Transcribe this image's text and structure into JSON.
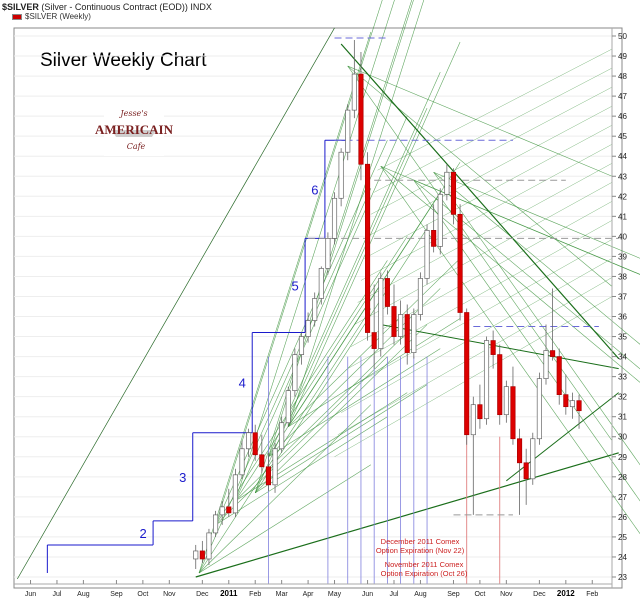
{
  "header": {
    "symbol": "$SILVER",
    "description": "(Silver - Continuous Contract (EOD)) INDX",
    "overlay_name": "$SILVER (Weekly)"
  },
  "logo": {
    "top_text": "Jesse's",
    "main_text": "AMERICAIN",
    "bottom_text": "Cafe"
  },
  "colors": {
    "up_candle": "#ffffff",
    "down_candle": "#dd0000",
    "step_lines": "#1a1acc",
    "fan_lines": "#2e8b2e",
    "trend_lines": "#1a6e1a",
    "annotation": "#cc2222",
    "vertical_markers": "#8080dd"
  },
  "chart_data": {
    "type": "candlestick",
    "title": "Silver Weekly Chart",
    "ylim": [
      22.6,
      50.6
    ],
    "y_ticks": [
      23,
      24,
      25,
      26,
      27,
      28,
      29,
      30,
      31,
      32,
      33,
      34,
      35,
      36,
      37,
      38,
      39,
      40,
      41,
      42,
      43,
      44,
      45,
      46,
      47,
      48,
      49,
      50
    ],
    "x_months": [
      {
        "label": "Jun",
        "week": 2
      },
      {
        "label": "Jul",
        "week": 6
      },
      {
        "label": "Aug",
        "week": 10
      },
      {
        "label": "Sep",
        "week": 15
      },
      {
        "label": "Oct",
        "week": 19
      },
      {
        "label": "Nov",
        "week": 23
      },
      {
        "label": "Dec",
        "week": 28
      },
      {
        "label": "2011",
        "week": 32,
        "bold": true
      },
      {
        "label": "Feb",
        "week": 36
      },
      {
        "label": "Mar",
        "week": 40
      },
      {
        "label": "Apr",
        "week": 44
      },
      {
        "label": "May",
        "week": 48
      },
      {
        "label": "Jun",
        "week": 53
      },
      {
        "label": "Jul",
        "week": 57
      },
      {
        "label": "Aug",
        "week": 61
      },
      {
        "label": "Sep",
        "week": 66
      },
      {
        "label": "Oct",
        "week": 70
      },
      {
        "label": "Nov",
        "week": 74
      },
      {
        "label": "Dec",
        "week": 79
      },
      {
        "label": "2012",
        "week": 83,
        "bold": true
      },
      {
        "label": "Feb",
        "week": 87
      }
    ],
    "candles": [
      {
        "o": 23.9,
        "h": 24.6,
        "l": 23.4,
        "c": 24.3
      },
      {
        "o": 24.3,
        "h": 24.8,
        "l": 23.7,
        "c": 23.9
      },
      {
        "o": 23.9,
        "h": 25.4,
        "l": 23.6,
        "c": 25.2
      },
      {
        "o": 25.2,
        "h": 26.3,
        "l": 25.0,
        "c": 26.1
      },
      {
        "o": 26.1,
        "h": 26.8,
        "l": 25.6,
        "c": 26.5
      },
      {
        "o": 26.5,
        "h": 27.4,
        "l": 26.0,
        "c": 26.2
      },
      {
        "o": 26.2,
        "h": 28.4,
        "l": 26.0,
        "c": 28.1
      },
      {
        "o": 28.1,
        "h": 29.8,
        "l": 27.9,
        "c": 29.4
      },
      {
        "o": 29.4,
        "h": 30.4,
        "l": 29.0,
        "c": 30.2
      },
      {
        "o": 30.2,
        "h": 30.6,
        "l": 28.8,
        "c": 29.1
      },
      {
        "o": 29.1,
        "h": 30.1,
        "l": 28.2,
        "c": 28.5
      },
      {
        "o": 28.5,
        "h": 29.2,
        "l": 27.3,
        "c": 27.6
      },
      {
        "o": 27.6,
        "h": 29.7,
        "l": 27.2,
        "c": 29.4
      },
      {
        "o": 29.4,
        "h": 31.0,
        "l": 29.2,
        "c": 30.7
      },
      {
        "o": 30.7,
        "h": 32.5,
        "l": 30.5,
        "c": 32.3
      },
      {
        "o": 32.3,
        "h": 34.4,
        "l": 32.0,
        "c": 34.1
      },
      {
        "o": 34.1,
        "h": 35.2,
        "l": 33.6,
        "c": 35.0
      },
      {
        "o": 35.0,
        "h": 36.2,
        "l": 34.7,
        "c": 35.8
      },
      {
        "o": 35.8,
        "h": 37.2,
        "l": 35.5,
        "c": 36.9
      },
      {
        "o": 36.9,
        "h": 38.5,
        "l": 36.6,
        "c": 38.4
      },
      {
        "o": 38.4,
        "h": 40.2,
        "l": 38.1,
        "c": 39.9
      },
      {
        "o": 39.9,
        "h": 42.2,
        "l": 39.6,
        "c": 41.9
      },
      {
        "o": 41.9,
        "h": 44.4,
        "l": 41.5,
        "c": 44.2
      },
      {
        "o": 44.2,
        "h": 46.6,
        "l": 43.8,
        "c": 46.3
      },
      {
        "o": 46.3,
        "h": 49.8,
        "l": 45.9,
        "c": 48.1
      },
      {
        "o": 48.1,
        "h": 49.2,
        "l": 42.8,
        "c": 43.6
      },
      {
        "o": 43.6,
        "h": 44.2,
        "l": 34.8,
        "c": 35.2
      },
      {
        "o": 35.2,
        "h": 37.6,
        "l": 33.4,
        "c": 34.4
      },
      {
        "o": 34.4,
        "h": 38.2,
        "l": 34.0,
        "c": 37.9
      },
      {
        "o": 37.9,
        "h": 38.3,
        "l": 36.1,
        "c": 36.5
      },
      {
        "o": 36.5,
        "h": 37.6,
        "l": 34.6,
        "c": 35.0
      },
      {
        "o": 35.0,
        "h": 36.8,
        "l": 34.6,
        "c": 36.1
      },
      {
        "o": 36.1,
        "h": 36.6,
        "l": 33.6,
        "c": 34.2
      },
      {
        "o": 34.2,
        "h": 36.4,
        "l": 33.9,
        "c": 36.1
      },
      {
        "o": 36.1,
        "h": 38.2,
        "l": 35.8,
        "c": 37.9
      },
      {
        "o": 37.9,
        "h": 40.6,
        "l": 37.6,
        "c": 40.3
      },
      {
        "o": 40.3,
        "h": 41.6,
        "l": 39.2,
        "c": 39.5
      },
      {
        "o": 39.5,
        "h": 42.4,
        "l": 39.1,
        "c": 42.1
      },
      {
        "o": 42.1,
        "h": 43.6,
        "l": 41.8,
        "c": 43.2
      },
      {
        "o": 43.2,
        "h": 43.4,
        "l": 40.6,
        "c": 41.1
      },
      {
        "o": 41.1,
        "h": 41.6,
        "l": 35.8,
        "c": 36.2
      },
      {
        "o": 36.2,
        "h": 36.4,
        "l": 29.6,
        "c": 30.1
      },
      {
        "o": 30.1,
        "h": 32.0,
        "l": 26.1,
        "c": 31.6
      },
      {
        "o": 31.6,
        "h": 32.6,
        "l": 30.4,
        "c": 30.9
      },
      {
        "o": 30.9,
        "h": 35.0,
        "l": 30.6,
        "c": 34.8
      },
      {
        "o": 34.8,
        "h": 35.3,
        "l": 33.4,
        "c": 34.1
      },
      {
        "o": 34.1,
        "h": 34.6,
        "l": 30.6,
        "c": 31.1
      },
      {
        "o": 31.1,
        "h": 32.8,
        "l": 30.7,
        "c": 32.5
      },
      {
        "o": 32.5,
        "h": 33.5,
        "l": 29.6,
        "c": 29.9
      },
      {
        "o": 29.9,
        "h": 30.4,
        "l": 26.1,
        "c": 28.7
      },
      {
        "o": 28.7,
        "h": 29.4,
        "l": 26.6,
        "c": 27.9
      },
      {
        "o": 27.9,
        "h": 30.2,
        "l": 27.6,
        "c": 29.9
      },
      {
        "o": 29.9,
        "h": 33.2,
        "l": 29.6,
        "c": 32.9
      },
      {
        "o": 32.9,
        "h": 35.6,
        "l": 32.6,
        "c": 34.3
      },
      {
        "o": 34.3,
        "h": 37.4,
        "l": 33.8,
        "c": 34.0
      },
      {
        "o": 34.0,
        "h": 34.4,
        "l": 31.6,
        "c": 32.1
      },
      {
        "o": 32.1,
        "h": 33.1,
        "l": 31.1,
        "c": 31.5
      },
      {
        "o": 31.5,
        "h": 32.2,
        "l": 30.9,
        "c": 31.8
      },
      {
        "o": 31.8,
        "h": 32.1,
        "l": 30.4,
        "c": 31.3
      }
    ],
    "price_steps": [
      {
        "label": "",
        "start_week": 5,
        "level": 24.6
      },
      {
        "label": "2",
        "start_week": 21,
        "level": 25.8
      },
      {
        "label": "3",
        "start_week": 27,
        "level": 30.2
      },
      {
        "label": "4",
        "start_week": 36,
        "level": 35.2
      },
      {
        "label": "5",
        "start_week": 44,
        "level": 39.9
      },
      {
        "label": "6",
        "start_week": 47,
        "level": 44.8
      }
    ],
    "horizontal_dashes": [
      {
        "level": 49.9,
        "x1": 48,
        "x2": 56,
        "color": "#6a6ad8"
      },
      {
        "level": 44.8,
        "x1": 48,
        "x2": 75,
        "color": "#6a6ad8"
      },
      {
        "level": 42.8,
        "x1": 54,
        "x2": 83,
        "color": "#999999"
      },
      {
        "level": 39.9,
        "x1": 44,
        "x2": 91,
        "color": "#999999"
      },
      {
        "level": 35.5,
        "x1": 69,
        "x2": 88,
        "color": "#6a6ad8"
      },
      {
        "level": 26.1,
        "x1": 66,
        "x2": 75,
        "color": "#999999"
      }
    ],
    "expiration_markers": [
      {
        "week": 68,
        "label_line1": "November 2011 Comex",
        "label_line2": "Option Expiration (Oct 26)"
      },
      {
        "week": 73,
        "label_line1": "December 2011 Comex",
        "label_line2": "Option Expiration (Nov 22)"
      }
    ],
    "vertical_markers_weeks": [
      38,
      47,
      50,
      52,
      54,
      56,
      58,
      60,
      62
    ],
    "notes": "Dense green Gann-fan style trendlines are overlaid from lows and highs"
  }
}
